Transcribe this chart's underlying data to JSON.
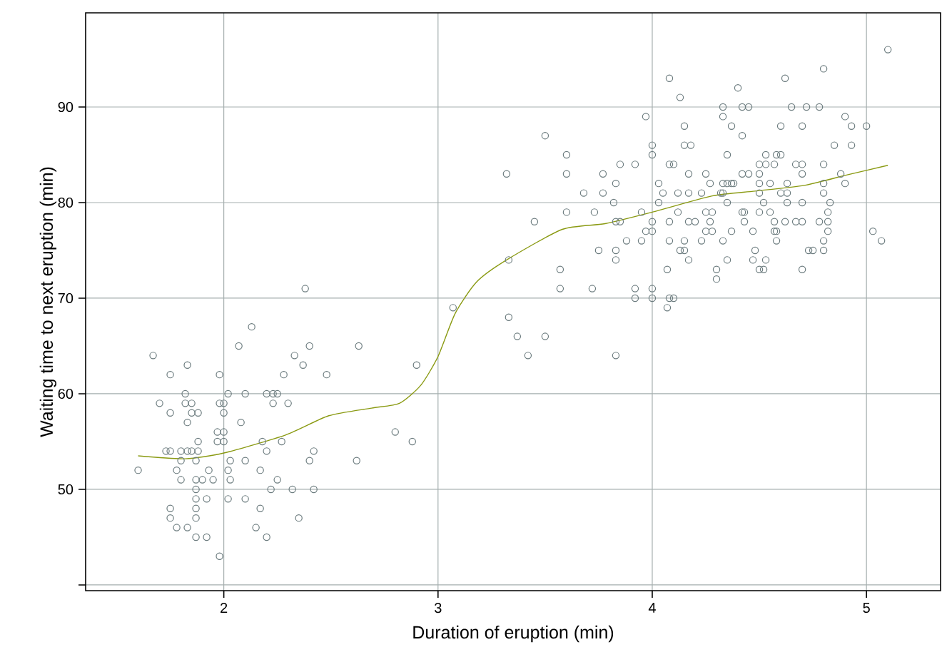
{
  "chart_data": {
    "type": "scatter",
    "xlabel": "Duration of eruption (min)",
    "ylabel": "Waiting time to next eruption (min)",
    "xlim": [
      1.355,
      5.346
    ],
    "ylim": [
      39.4,
      99.85
    ],
    "xticks": [
      2,
      3,
      4,
      5
    ],
    "yticks": [
      {
        "value": 40,
        "label": null
      },
      50,
      60,
      70,
      80,
      90
    ],
    "grid": true,
    "series": [
      {
        "marker": "circle",
        "color": "#6b7b7e",
        "x": [
          1.6,
          1.67,
          1.7,
          1.73,
          1.75,
          1.75,
          1.75,
          1.75,
          1.75,
          1.78,
          1.78,
          1.8,
          1.8,
          1.8,
          1.82,
          1.82,
          1.83,
          1.83,
          1.83,
          1.83,
          1.85,
          1.85,
          1.85,
          1.87,
          1.87,
          1.87,
          1.87,
          1.87,
          1.87,
          1.87,
          1.88,
          1.88,
          1.88,
          1.9,
          1.92,
          1.92,
          1.93,
          1.95,
          1.97,
          1.97,
          1.98,
          1.98,
          1.98,
          2.0,
          2.0,
          2.0,
          2.0,
          2.02,
          2.02,
          2.02,
          2.03,
          2.03,
          2.07,
          2.08,
          2.1,
          2.1,
          2.1,
          2.13,
          2.15,
          2.17,
          2.17,
          2.18,
          2.2,
          2.2,
          2.2,
          2.22,
          2.23,
          2.23,
          2.25,
          2.25,
          2.27,
          2.28,
          2.3,
          2.32,
          2.33,
          2.35,
          2.37,
          2.38,
          2.4,
          2.4,
          2.42,
          2.42,
          2.48,
          2.62,
          2.63,
          2.8,
          2.88,
          2.9,
          3.07,
          3.32,
          3.33,
          3.33,
          3.37,
          3.42,
          3.45,
          3.5,
          3.5,
          3.57,
          3.57,
          3.6,
          3.6,
          3.6,
          3.68,
          3.72,
          3.73,
          3.75,
          3.77,
          3.77,
          3.82,
          3.83,
          3.83,
          3.83,
          3.83,
          3.83,
          3.85,
          3.85,
          3.88,
          3.92,
          3.92,
          3.92,
          3.95,
          3.95,
          3.97,
          3.97,
          4.0,
          4.0,
          4.0,
          4.0,
          4.0,
          4.0,
          4.03,
          4.03,
          4.05,
          4.07,
          4.07,
          4.08,
          4.08,
          4.08,
          4.08,
          4.08,
          4.1,
          4.1,
          4.12,
          4.12,
          4.13,
          4.13,
          4.15,
          4.15,
          4.15,
          4.15,
          4.17,
          4.17,
          4.17,
          4.17,
          4.18,
          4.2,
          4.23,
          4.23,
          4.25,
          4.25,
          4.25,
          4.27,
          4.27,
          4.28,
          4.28,
          4.3,
          4.3,
          4.32,
          4.33,
          4.33,
          4.33,
          4.33,
          4.33,
          4.35,
          4.35,
          4.35,
          4.35,
          4.37,
          4.37,
          4.37,
          4.38,
          4.4,
          4.42,
          4.42,
          4.42,
          4.42,
          4.43,
          4.43,
          4.45,
          4.45,
          4.47,
          4.47,
          4.48,
          4.5,
          4.5,
          4.5,
          4.5,
          4.5,
          4.5,
          4.52,
          4.52,
          4.53,
          4.53,
          4.53,
          4.55,
          4.55,
          4.57,
          4.57,
          4.57,
          4.58,
          4.58,
          4.58,
          4.6,
          4.6,
          4.6,
          4.62,
          4.62,
          4.63,
          4.63,
          4.63,
          4.65,
          4.67,
          4.67,
          4.7,
          4.7,
          4.7,
          4.7,
          4.7,
          4.7,
          4.72,
          4.73,
          4.75,
          4.78,
          4.78,
          4.8,
          4.8,
          4.8,
          4.8,
          4.8,
          4.8,
          4.82,
          4.82,
          4.82,
          4.83,
          4.85,
          4.88,
          4.9,
          4.9,
          4.93,
          4.93,
          5.0,
          5.03,
          5.07,
          5.1
        ],
        "values": [
          52,
          64,
          59,
          54,
          54,
          62,
          58,
          48,
          47,
          52,
          46,
          54,
          53,
          51,
          60,
          59,
          63,
          57,
          54,
          46,
          59,
          58,
          54,
          53,
          51,
          50,
          49,
          48,
          47,
          45,
          58,
          55,
          54,
          51,
          49,
          45,
          52,
          51,
          56,
          55,
          62,
          59,
          43,
          59,
          58,
          56,
          55,
          60,
          52,
          49,
          53,
          51,
          65,
          57,
          60,
          53,
          49,
          67,
          46,
          52,
          48,
          55,
          60,
          54,
          45,
          50,
          60,
          59,
          60,
          51,
          55,
          62,
          59,
          50,
          64,
          47,
          63,
          71,
          65,
          53,
          54,
          50,
          62,
          53,
          65,
          56,
          55,
          63,
          69,
          83,
          74,
          68,
          66,
          64,
          78,
          87,
          66,
          73,
          71,
          85,
          83,
          79,
          81,
          71,
          79,
          75,
          83,
          81,
          80,
          82,
          78,
          75,
          74,
          64,
          84,
          78,
          76,
          84,
          71,
          70,
          79,
          76,
          89,
          77,
          86,
          85,
          78,
          77,
          71,
          70,
          82,
          80,
          81,
          73,
          69,
          93,
          84,
          78,
          76,
          70,
          84,
          70,
          81,
          79,
          91,
          75,
          88,
          86,
          76,
          75,
          83,
          81,
          78,
          74,
          86,
          78,
          81,
          76,
          83,
          79,
          77,
          82,
          78,
          79,
          77,
          73,
          72,
          81,
          90,
          89,
          82,
          81,
          76,
          85,
          82,
          80,
          74,
          88,
          82,
          77,
          82,
          92,
          90,
          87,
          83,
          79,
          79,
          78,
          90,
          83,
          77,
          74,
          75,
          84,
          83,
          82,
          81,
          79,
          73,
          80,
          73,
          85,
          84,
          74,
          82,
          79,
          84,
          78,
          77,
          85,
          77,
          76,
          88,
          85,
          81,
          93,
          78,
          82,
          81,
          80,
          90,
          84,
          78,
          88,
          84,
          83,
          80,
          78,
          73,
          90,
          75,
          75,
          90,
          78,
          94,
          84,
          82,
          81,
          76,
          75,
          79,
          78,
          77,
          80,
          86,
          83,
          89,
          82,
          88,
          86,
          88,
          77,
          76,
          96
        ]
      },
      {
        "type": "line",
        "marker": "none",
        "line_style": "solid",
        "color": "#8a9a12",
        "x": [
          1.6,
          1.82,
          2.0,
          2.29,
          2.49,
          2.69,
          2.82,
          2.92,
          3.0,
          3.08,
          3.18,
          3.32,
          3.58,
          3.78,
          4.0,
          4.28,
          4.48,
          4.71,
          4.91,
          5.1
        ],
        "values": [
          53.5,
          53.2,
          53.8,
          55.7,
          57.7,
          58.5,
          59.0,
          60.9,
          63.9,
          68.4,
          71.7,
          74.0,
          77.2,
          77.8,
          79.0,
          80.7,
          81.2,
          81.8,
          82.9,
          83.9
        ]
      }
    ]
  }
}
